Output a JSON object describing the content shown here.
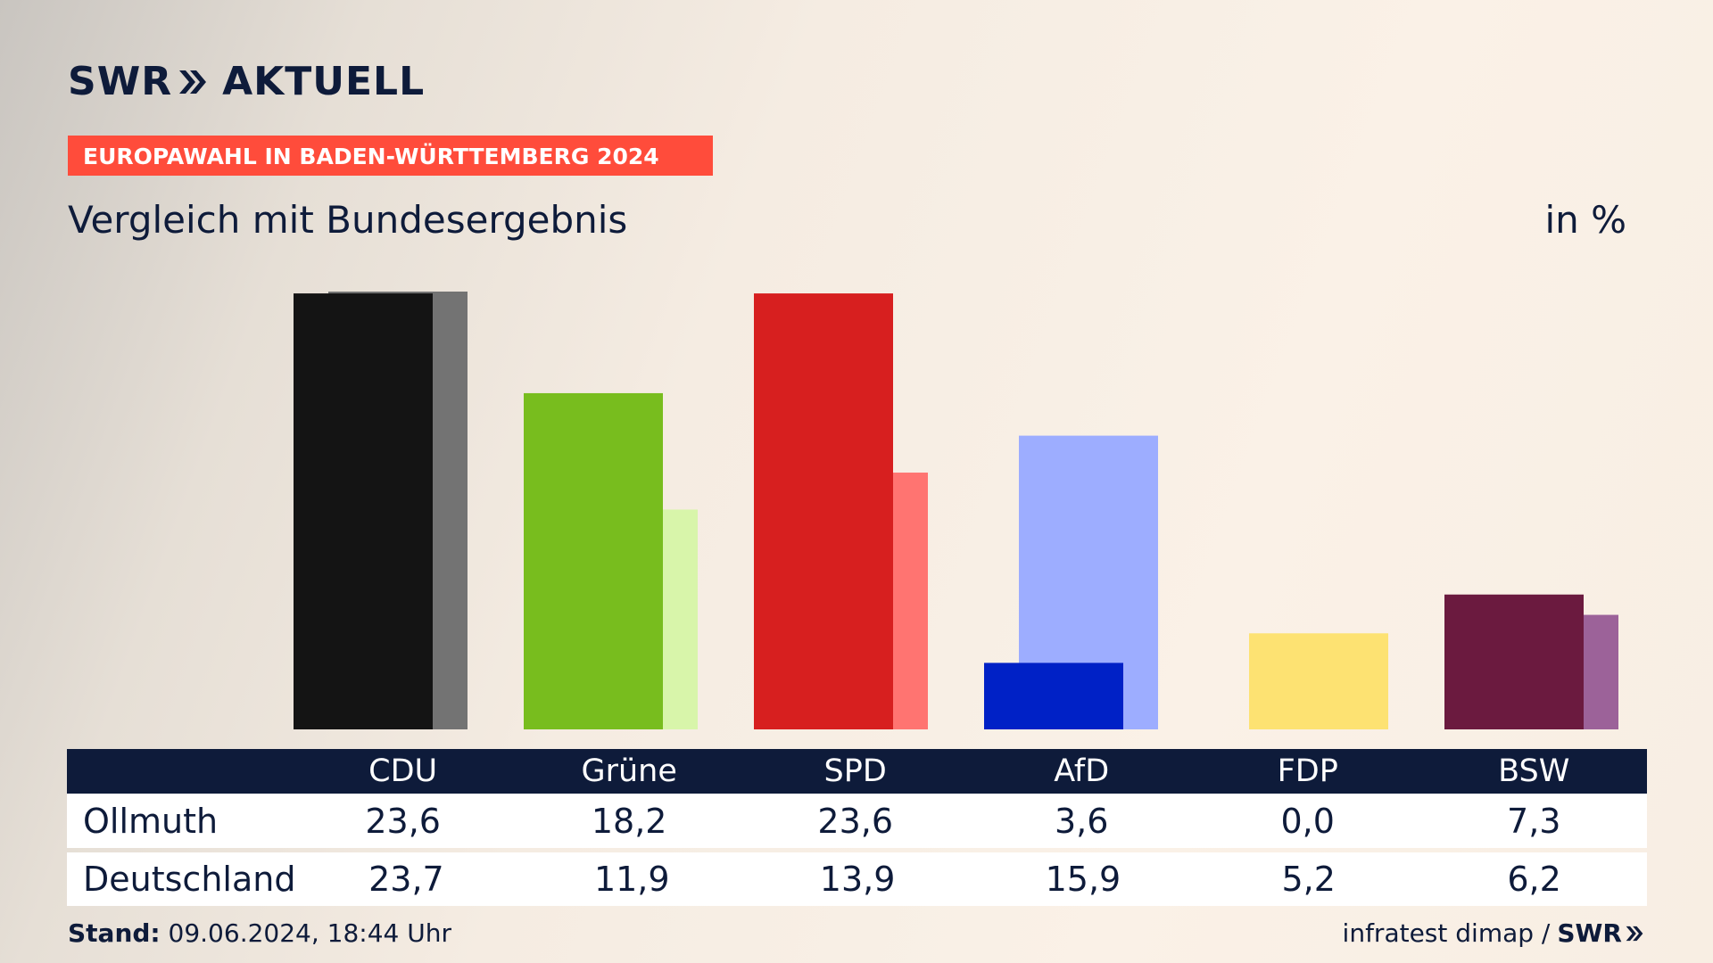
{
  "header": {
    "logo_swr": "SWR",
    "logo_aktuell": "AKTUELL",
    "banner": "EUROPAWAHL IN BADEN-WÜRTTEMBERG 2024",
    "subtitle": "Vergleich mit Bundesergebnis",
    "unit": "in %"
  },
  "table": {
    "rows": [
      {
        "label": "Ollmuth",
        "values": [
          "23,6",
          "18,2",
          "23,6",
          "3,6",
          "0,0",
          "7,3"
        ]
      },
      {
        "label": "Deutschland",
        "values": [
          "23,7",
          "11,9",
          "13,9",
          "15,9",
          "5,2",
          "6,2"
        ]
      }
    ]
  },
  "footer": {
    "stand_label": "Stand:",
    "stand_value": "09.06.2024, 18:44 Uhr",
    "source": "infratest dimap /",
    "source_logo": "SWR"
  },
  "colors": {
    "navy": "#0e1b3a",
    "banner": "#ff4c3b"
  },
  "chart_data": {
    "type": "bar",
    "categories": [
      "CDU",
      "Grüne",
      "SPD",
      "AfD",
      "FDP",
      "BSW"
    ],
    "series": [
      {
        "name": "Ollmuth",
        "values": [
          23.6,
          18.2,
          23.6,
          3.6,
          0.0,
          7.3
        ],
        "colors": [
          "#141414",
          "#78bd1e",
          "#d71f1f",
          "#0021c6",
          "#fde272",
          "#6b1a3f"
        ]
      },
      {
        "name": "Deutschland",
        "values": [
          23.7,
          11.9,
          13.9,
          15.9,
          5.2,
          6.2
        ],
        "colors": [
          "#737373",
          "#d8f5aa",
          "#ff7471",
          "#9dadff",
          "#fde272",
          "#9c6299"
        ]
      }
    ],
    "ylim": [
      0,
      23.7
    ]
  }
}
